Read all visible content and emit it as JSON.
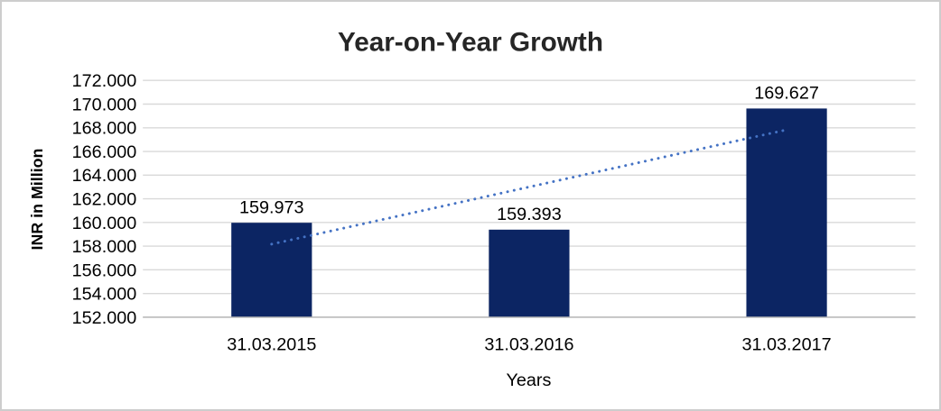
{
  "chart_data": {
    "type": "bar",
    "title": "Year-on-Year Growth",
    "xlabel": "Years",
    "ylabel": "INR in Million",
    "categories": [
      "31.03.2015",
      "31.03.2016",
      "31.03.2017"
    ],
    "values": [
      159.973,
      159.393,
      169.627
    ],
    "data_labels": [
      "159.973",
      "159.393",
      "169.627"
    ],
    "ylim": [
      152,
      172
    ],
    "ytick_step": 2,
    "ytick_labels": [
      "152.000",
      "154.000",
      "156.000",
      "158.000",
      "160.000",
      "162.000",
      "164.000",
      "166.000",
      "168.000",
      "170.000",
      "172.000"
    ],
    "grid": true,
    "legend_position": "none",
    "bar_color": "#0c2563",
    "trendline": {
      "type": "linear",
      "style": "dotted",
      "color": "#4472c4",
      "start_value": 158.17,
      "end_value": 167.83
    },
    "colors": {
      "gridline": "#d9d9d9",
      "axis_line": "#b3b3b3",
      "text": "#000000",
      "title_text": "#262626",
      "background": "#ffffff",
      "border": "#cdcdcd"
    }
  }
}
